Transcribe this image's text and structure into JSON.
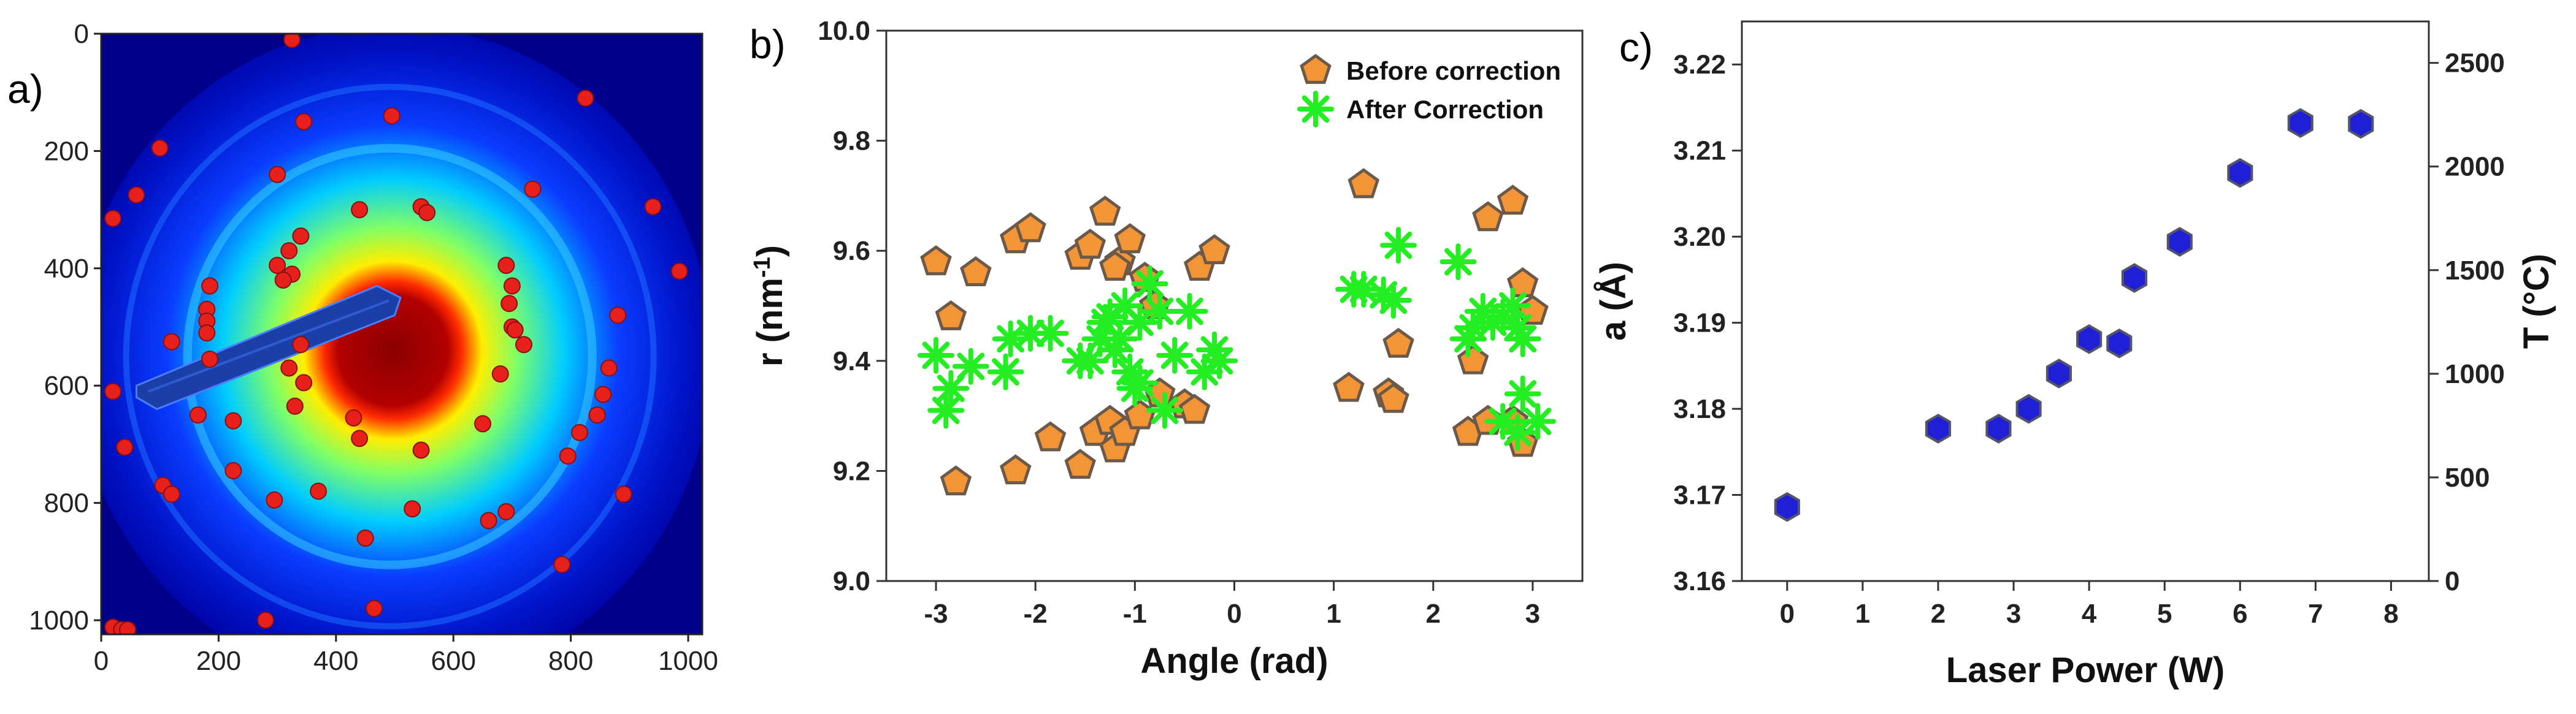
{
  "panels": {
    "a": {
      "label": "a)"
    },
    "b": {
      "label": "b)"
    },
    "c": {
      "label": "c)"
    }
  },
  "chart_data": [
    {
      "panel": "a",
      "type": "heatmap",
      "title": "",
      "xlabel": "",
      "ylabel": "",
      "xlim": [
        0,
        1024
      ],
      "ylim": [
        1024,
        0
      ],
      "x_ticks": [
        0,
        200,
        400,
        600,
        800,
        1000
      ],
      "y_ticks": [
        0,
        200,
        400,
        600,
        800,
        1000
      ],
      "colormap": [
        "#00008b",
        "#0000ff",
        "#00bfff",
        "#7fff7f",
        "#ffff00",
        "#ff3300",
        "#8b0000"
      ],
      "diffraction_center": [
        497,
        540
      ],
      "grid": false,
      "marker_color": "#e8201c",
      "spots": [
        [
          325,
          10
        ],
        [
          825,
          110
        ],
        [
          495,
          140
        ],
        [
          345,
          150
        ],
        [
          100,
          195
        ],
        [
          300,
          240
        ],
        [
          20,
          315
        ],
        [
          60,
          275
        ],
        [
          735,
          265
        ],
        [
          440,
          300
        ],
        [
          545,
          295
        ],
        [
          555,
          305
        ],
        [
          340,
          345
        ],
        [
          320,
          370
        ],
        [
          300,
          395
        ],
        [
          325,
          410
        ],
        [
          310,
          420
        ],
        [
          940,
          295
        ],
        [
          985,
          405
        ],
        [
          690,
          395
        ],
        [
          700,
          430
        ],
        [
          695,
          460
        ],
        [
          700,
          500
        ],
        [
          720,
          530
        ],
        [
          705,
          505
        ],
        [
          185,
          430
        ],
        [
          180,
          470
        ],
        [
          180,
          490
        ],
        [
          180,
          510
        ],
        [
          120,
          525
        ],
        [
          340,
          530
        ],
        [
          880,
          480
        ],
        [
          865,
          570
        ],
        [
          185,
          555
        ],
        [
          320,
          570
        ],
        [
          345,
          595
        ],
        [
          330,
          635
        ],
        [
          165,
          650
        ],
        [
          225,
          660
        ],
        [
          20,
          610
        ],
        [
          680,
          580
        ],
        [
          855,
          615
        ],
        [
          845,
          650
        ],
        [
          815,
          680
        ],
        [
          795,
          720
        ],
        [
          440,
          690
        ],
        [
          430,
          655
        ],
        [
          545,
          710
        ],
        [
          650,
          665
        ],
        [
          225,
          745
        ],
        [
          370,
          780
        ],
        [
          105,
          770
        ],
        [
          120,
          785
        ],
        [
          295,
          795
        ],
        [
          530,
          810
        ],
        [
          450,
          860
        ],
        [
          660,
          830
        ],
        [
          690,
          815
        ],
        [
          890,
          785
        ],
        [
          785,
          905
        ],
        [
          465,
          980
        ],
        [
          280,
          1000
        ],
        [
          40,
          705
        ],
        [
          20,
          1012
        ],
        [
          35,
          1016
        ],
        [
          45,
          1016
        ]
      ]
    },
    {
      "panel": "b",
      "type": "scatter",
      "title": "",
      "xlabel": "Angle (rad)",
      "ylabel": "r (nm⁻¹)",
      "ylabel_base": "r (nm",
      "ylabel_sup": "-1",
      "ylabel_close": ")",
      "xlim": [
        -3.5,
        3.5
      ],
      "ylim": [
        9.0,
        10.0
      ],
      "x_ticks": [
        -3,
        -2,
        -1,
        0,
        1,
        2,
        3
      ],
      "y_ticks": [
        9.0,
        9.2,
        9.4,
        9.6,
        9.8,
        10.0
      ],
      "grid": false,
      "legend_position": "top-right",
      "series": [
        {
          "name": "Before correction",
          "marker": "pentagon",
          "color": "#f39536",
          "edge": "#6b5a4a",
          "points": [
            [
              -3.0,
              9.58
            ],
            [
              -2.85,
              9.48
            ],
            [
              -2.8,
              9.18
            ],
            [
              -2.6,
              9.56
            ],
            [
              -2.2,
              9.62
            ],
            [
              -2.05,
              9.64
            ],
            [
              -2.2,
              9.2
            ],
            [
              -1.85,
              9.26
            ],
            [
              -1.55,
              9.59
            ],
            [
              -1.45,
              9.61
            ],
            [
              -1.3,
              9.67
            ],
            [
              -1.15,
              9.58
            ],
            [
              -1.05,
              9.62
            ],
            [
              -1.2,
              9.57
            ],
            [
              -1.55,
              9.21
            ],
            [
              -1.4,
              9.27
            ],
            [
              -1.2,
              9.24
            ],
            [
              -1.25,
              9.29
            ],
            [
              -1.1,
              9.27
            ],
            [
              -0.95,
              9.3
            ],
            [
              -0.8,
              9.5
            ],
            [
              -0.75,
              9.34
            ],
            [
              -0.5,
              9.32
            ],
            [
              -0.4,
              9.31
            ],
            [
              -0.35,
              9.57
            ],
            [
              -0.2,
              9.6
            ],
            [
              -0.9,
              9.55
            ],
            [
              1.15,
              9.35
            ],
            [
              1.3,
              9.72
            ],
            [
              1.55,
              9.34
            ],
            [
              1.6,
              9.33
            ],
            [
              1.65,
              9.43
            ],
            [
              2.35,
              9.27
            ],
            [
              2.4,
              9.4
            ],
            [
              2.55,
              9.29
            ],
            [
              2.55,
              9.66
            ],
            [
              2.8,
              9.69
            ],
            [
              2.9,
              9.54
            ],
            [
              2.9,
              9.25
            ],
            [
              3.0,
              9.49
            ],
            [
              2.8,
              9.29
            ]
          ]
        },
        {
          "name": "After Correction",
          "marker": "asterisk",
          "color": "#22ee22",
          "points": [
            [
              -3.0,
              9.41
            ],
            [
              -2.9,
              9.31
            ],
            [
              -2.85,
              9.35
            ],
            [
              -2.65,
              9.39
            ],
            [
              -2.3,
              9.38
            ],
            [
              -2.25,
              9.44
            ],
            [
              -2.05,
              9.45
            ],
            [
              -1.85,
              9.45
            ],
            [
              -1.55,
              9.4
            ],
            [
              -1.45,
              9.4
            ],
            [
              -1.35,
              9.44
            ],
            [
              -1.3,
              9.47
            ],
            [
              -1.25,
              9.48
            ],
            [
              -1.2,
              9.42
            ],
            [
              -1.15,
              9.44
            ],
            [
              -1.1,
              9.5
            ],
            [
              -1.05,
              9.38
            ],
            [
              -1.0,
              9.35
            ],
            [
              -0.95,
              9.36
            ],
            [
              -0.85,
              9.54
            ],
            [
              -0.75,
              9.49
            ],
            [
              -0.7,
              9.31
            ],
            [
              -0.6,
              9.41
            ],
            [
              -0.45,
              9.49
            ],
            [
              -0.3,
              9.38
            ],
            [
              -0.2,
              9.42
            ],
            [
              -0.15,
              9.4
            ],
            [
              -0.95,
              9.47
            ],
            [
              1.2,
              9.53
            ],
            [
              1.3,
              9.53
            ],
            [
              1.5,
              9.52
            ],
            [
              1.6,
              9.51
            ],
            [
              1.65,
              9.61
            ],
            [
              2.25,
              9.58
            ],
            [
              2.35,
              9.44
            ],
            [
              2.4,
              9.46
            ],
            [
              2.5,
              9.49
            ],
            [
              2.6,
              9.47
            ],
            [
              2.7,
              9.48
            ],
            [
              2.8,
              9.5
            ],
            [
              2.85,
              9.46
            ],
            [
              2.9,
              9.44
            ],
            [
              2.9,
              9.34
            ],
            [
              2.7,
              9.29
            ],
            [
              2.85,
              9.27
            ],
            [
              3.05,
              9.29
            ]
          ]
        }
      ]
    },
    {
      "panel": "c",
      "type": "scatter",
      "title": "",
      "xlabel": "Laser Power (W)",
      "ylabel": "a (Å)",
      "ylabel_right": "T (°C)",
      "xlim": [
        -0.6,
        8.5
      ],
      "ylim": [
        3.16,
        3.225
      ],
      "ylim_right": [
        0,
        2700
      ],
      "x_ticks": [
        0,
        1,
        2,
        3,
        4,
        5,
        6,
        7,
        8
      ],
      "y_ticks": [
        3.16,
        3.17,
        3.18,
        3.19,
        3.2,
        3.21,
        3.22
      ],
      "y_ticks_right": [
        0,
        500,
        1000,
        1500,
        2000,
        2500
      ],
      "grid": false,
      "series": [
        {
          "marker": "hexagon",
          "color": "#1f1fd6",
          "edge": "#55556a",
          "points": [
            [
              0,
              3.1686
            ],
            [
              2,
              3.1777
            ],
            [
              2.8,
              3.1777
            ],
            [
              3.2,
              3.18
            ],
            [
              3.6,
              3.1841
            ],
            [
              4.0,
              3.1881
            ],
            [
              4.4,
              3.1876
            ],
            [
              4.6,
              3.1952
            ],
            [
              5.2,
              3.1994
            ],
            [
              6.0,
              3.2074
            ],
            [
              6.8,
              3.2132
            ],
            [
              7.6,
              3.2131
            ]
          ]
        }
      ]
    }
  ]
}
